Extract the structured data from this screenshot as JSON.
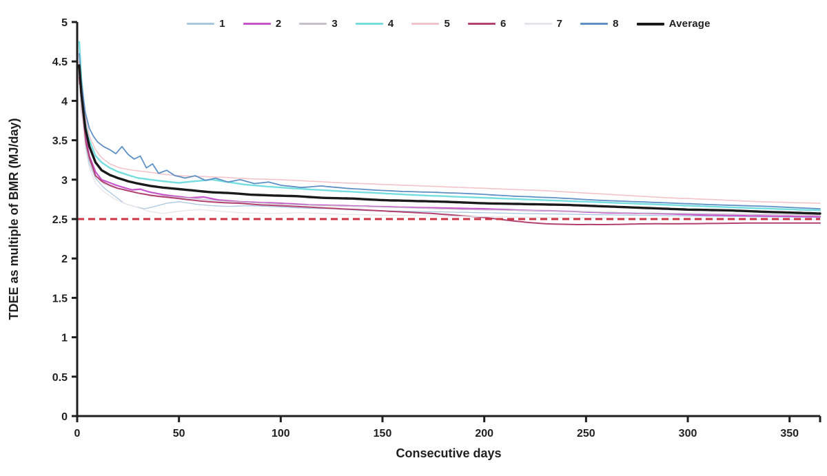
{
  "chart_data": {
    "type": "line",
    "title": "",
    "xlabel": "Consecutive days",
    "ylabel": "TDEE as multiple of BMR (MJ/day)",
    "xlim": [
      0,
      365
    ],
    "ylim": [
      0,
      5
    ],
    "x_ticks": [
      0,
      50,
      100,
      150,
      200,
      250,
      300,
      350
    ],
    "x_tick_labels": [
      "0",
      "50",
      "100",
      "150",
      "200",
      "250",
      "300",
      "350"
    ],
    "y_ticks": [
      0,
      0.5,
      1,
      1.5,
      2,
      2.5,
      3,
      3.5,
      4,
      4.5,
      5
    ],
    "y_tick_labels": [
      "0",
      "0.5",
      "1",
      "1.5",
      "2",
      "2.5",
      "3",
      "3.5",
      "4",
      "4.5",
      "5"
    ],
    "grid": false,
    "legend_position": "top",
    "axis_color": "#1f1f1f",
    "reference_line": {
      "y": 2.5,
      "color": "#cc3344",
      "style": "dashed"
    },
    "series": [
      {
        "name": "1",
        "color": "#a9c7e0",
        "width": 1.3,
        "wiggle": 0.013,
        "points": [
          [
            1,
            4.4
          ],
          [
            2,
            4.0
          ],
          [
            4,
            3.45
          ],
          [
            6,
            3.2
          ],
          [
            9,
            3.02
          ],
          [
            13,
            2.9
          ],
          [
            18,
            2.8
          ],
          [
            23,
            2.7
          ],
          [
            28,
            2.66
          ],
          [
            33,
            2.63
          ],
          [
            38,
            2.66
          ],
          [
            44,
            2.7
          ],
          [
            50,
            2.72
          ],
          [
            58,
            2.69
          ],
          [
            66,
            2.67
          ],
          [
            75,
            2.66
          ],
          [
            85,
            2.67
          ],
          [
            95,
            2.66
          ],
          [
            110,
            2.64
          ],
          [
            125,
            2.63
          ],
          [
            140,
            2.61
          ],
          [
            160,
            2.6
          ],
          [
            180,
            2.59
          ],
          [
            200,
            2.58
          ],
          [
            220,
            2.57
          ],
          [
            245,
            2.56
          ],
          [
            270,
            2.55
          ],
          [
            300,
            2.54
          ],
          [
            330,
            2.53
          ],
          [
            365,
            2.52
          ]
        ]
      },
      {
        "name": "2",
        "color": "#c653cb",
        "width": 2.2,
        "wiggle": 0.014,
        "points": [
          [
            1,
            4.35
          ],
          [
            2,
            4.05
          ],
          [
            4,
            3.55
          ],
          [
            6,
            3.3
          ],
          [
            9,
            3.1
          ],
          [
            12,
            3.0
          ],
          [
            15,
            2.97
          ],
          [
            19,
            2.93
          ],
          [
            23,
            2.9
          ],
          [
            27,
            2.87
          ],
          [
            31,
            2.88
          ],
          [
            36,
            2.84
          ],
          [
            42,
            2.81
          ],
          [
            48,
            2.79
          ],
          [
            55,
            2.77
          ],
          [
            62,
            2.78
          ],
          [
            70,
            2.74
          ],
          [
            80,
            2.72
          ],
          [
            90,
            2.71
          ],
          [
            100,
            2.7
          ],
          [
            115,
            2.68
          ],
          [
            130,
            2.67
          ],
          [
            145,
            2.66
          ],
          [
            160,
            2.65
          ],
          [
            180,
            2.64
          ],
          [
            200,
            2.63
          ],
          [
            220,
            2.61
          ],
          [
            240,
            2.6
          ],
          [
            260,
            2.58
          ],
          [
            285,
            2.57
          ],
          [
            310,
            2.55
          ],
          [
            335,
            2.54
          ],
          [
            365,
            2.53
          ]
        ]
      },
      {
        "name": "3",
        "color": "#c7c0cb",
        "width": 1.3,
        "wiggle": 0.012,
        "points": [
          [
            1,
            4.3
          ],
          [
            2,
            3.95
          ],
          [
            4,
            3.5
          ],
          [
            6,
            3.25
          ],
          [
            9,
            3.05
          ],
          [
            13,
            2.95
          ],
          [
            18,
            2.9
          ],
          [
            24,
            2.86
          ],
          [
            30,
            2.83
          ],
          [
            38,
            2.8
          ],
          [
            48,
            2.78
          ],
          [
            58,
            2.76
          ],
          [
            70,
            2.73
          ],
          [
            85,
            2.71
          ],
          [
            100,
            2.69
          ],
          [
            120,
            2.67
          ],
          [
            140,
            2.66
          ],
          [
            165,
            2.64
          ],
          [
            190,
            2.62
          ],
          [
            215,
            2.61
          ],
          [
            240,
            2.6
          ],
          [
            270,
            2.58
          ],
          [
            300,
            2.57
          ],
          [
            330,
            2.56
          ],
          [
            365,
            2.55
          ]
        ]
      },
      {
        "name": "4",
        "color": "#74dedf",
        "width": 2.4,
        "wiggle": 0.015,
        "points": [
          [
            1,
            4.75
          ],
          [
            2,
            4.3
          ],
          [
            4,
            3.75
          ],
          [
            6,
            3.5
          ],
          [
            9,
            3.3
          ],
          [
            12,
            3.22
          ],
          [
            16,
            3.15
          ],
          [
            20,
            3.1
          ],
          [
            25,
            3.06
          ],
          [
            30,
            3.02
          ],
          [
            36,
            3.0
          ],
          [
            42,
            2.98
          ],
          [
            50,
            2.96
          ],
          [
            58,
            2.98
          ],
          [
            66,
            3.0
          ],
          [
            74,
            2.97
          ],
          [
            82,
            2.94
          ],
          [
            90,
            2.92
          ],
          [
            100,
            2.9
          ],
          [
            112,
            2.88
          ],
          [
            125,
            2.86
          ],
          [
            140,
            2.84
          ],
          [
            155,
            2.82
          ],
          [
            170,
            2.8
          ],
          [
            190,
            2.78
          ],
          [
            210,
            2.76
          ],
          [
            230,
            2.74
          ],
          [
            250,
            2.72
          ],
          [
            270,
            2.7
          ],
          [
            290,
            2.68
          ],
          [
            310,
            2.66
          ],
          [
            330,
            2.64
          ],
          [
            365,
            2.61
          ]
        ]
      },
      {
        "name": "5",
        "color": "#f2c4ca",
        "width": 1.6,
        "wiggle": 0.01,
        "points": [
          [
            1,
            4.5
          ],
          [
            2,
            4.2
          ],
          [
            4,
            3.8
          ],
          [
            6,
            3.55
          ],
          [
            9,
            3.38
          ],
          [
            12,
            3.28
          ],
          [
            16,
            3.2
          ],
          [
            21,
            3.15
          ],
          [
            27,
            3.12
          ],
          [
            34,
            3.1
          ],
          [
            42,
            3.07
          ],
          [
            50,
            3.05
          ],
          [
            60,
            3.04
          ],
          [
            72,
            3.03
          ],
          [
            85,
            3.01
          ],
          [
            100,
            3.0
          ],
          [
            115,
            2.98
          ],
          [
            130,
            2.96
          ],
          [
            150,
            2.94
          ],
          [
            170,
            2.92
          ],
          [
            190,
            2.9
          ],
          [
            210,
            2.88
          ],
          [
            230,
            2.86
          ],
          [
            250,
            2.83
          ],
          [
            270,
            2.8
          ],
          [
            290,
            2.77
          ],
          [
            310,
            2.75
          ],
          [
            335,
            2.72
          ],
          [
            365,
            2.7
          ]
        ]
      },
      {
        "name": "6",
        "color": "#b2416f",
        "width": 2.0,
        "wiggle": 0.012,
        "points": [
          [
            1,
            4.3
          ],
          [
            2,
            3.9
          ],
          [
            4,
            3.5
          ],
          [
            6,
            3.28
          ],
          [
            9,
            3.05
          ],
          [
            12,
            2.98
          ],
          [
            16,
            2.93
          ],
          [
            20,
            2.89
          ],
          [
            25,
            2.86
          ],
          [
            30,
            2.83
          ],
          [
            36,
            2.8
          ],
          [
            43,
            2.78
          ],
          [
            50,
            2.76
          ],
          [
            60,
            2.73
          ],
          [
            70,
            2.71
          ],
          [
            80,
            2.7
          ],
          [
            90,
            2.68
          ],
          [
            100,
            2.67
          ],
          [
            115,
            2.65
          ],
          [
            130,
            2.63
          ],
          [
            145,
            2.61
          ],
          [
            160,
            2.59
          ],
          [
            175,
            2.57
          ],
          [
            190,
            2.54
          ],
          [
            200,
            2.52
          ],
          [
            210,
            2.49
          ],
          [
            220,
            2.46
          ],
          [
            230,
            2.44
          ],
          [
            245,
            2.43
          ],
          [
            260,
            2.43
          ],
          [
            280,
            2.44
          ],
          [
            300,
            2.44
          ],
          [
            330,
            2.45
          ],
          [
            365,
            2.45
          ]
        ]
      },
      {
        "name": "7",
        "color": "#e6e4ea",
        "width": 1.3,
        "wiggle": 0.012,
        "points": [
          [
            1,
            4.2
          ],
          [
            2,
            3.9
          ],
          [
            4,
            3.4
          ],
          [
            6,
            3.15
          ],
          [
            9,
            2.95
          ],
          [
            13,
            2.85
          ],
          [
            18,
            2.76
          ],
          [
            23,
            2.7
          ],
          [
            28,
            2.66
          ],
          [
            35,
            2.6
          ],
          [
            42,
            2.57
          ],
          [
            50,
            2.6
          ],
          [
            60,
            2.62
          ],
          [
            70,
            2.6
          ],
          [
            80,
            2.58
          ],
          [
            95,
            2.57
          ],
          [
            110,
            2.58
          ],
          [
            130,
            2.56
          ],
          [
            150,
            2.55
          ],
          [
            175,
            2.54
          ],
          [
            200,
            2.53
          ],
          [
            230,
            2.52
          ],
          [
            260,
            2.51
          ],
          [
            290,
            2.5
          ],
          [
            320,
            2.5
          ],
          [
            365,
            2.49
          ]
        ]
      },
      {
        "name": "8",
        "color": "#5e90c6",
        "width": 1.8,
        "wiggle": 0.012,
        "points": [
          [
            1,
            4.6
          ],
          [
            2,
            4.25
          ],
          [
            4,
            3.85
          ],
          [
            6,
            3.65
          ],
          [
            8,
            3.55
          ],
          [
            10,
            3.48
          ],
          [
            13,
            3.42
          ],
          [
            16,
            3.38
          ],
          [
            19,
            3.33
          ],
          [
            22,
            3.42
          ],
          [
            25,
            3.32
          ],
          [
            28,
            3.26
          ],
          [
            31,
            3.3
          ],
          [
            34,
            3.15
          ],
          [
            37,
            3.2
          ],
          [
            40,
            3.08
          ],
          [
            44,
            3.12
          ],
          [
            48,
            3.05
          ],
          [
            53,
            3.02
          ],
          [
            58,
            3.05
          ],
          [
            63,
            2.99
          ],
          [
            68,
            3.02
          ],
          [
            74,
            2.97
          ],
          [
            80,
            3.0
          ],
          [
            87,
            2.95
          ],
          [
            94,
            2.97
          ],
          [
            100,
            2.93
          ],
          [
            110,
            2.9
          ],
          [
            120,
            2.92
          ],
          [
            132,
            2.89
          ],
          [
            145,
            2.87
          ],
          [
            160,
            2.85
          ],
          [
            175,
            2.84
          ],
          [
            195,
            2.82
          ],
          [
            215,
            2.79
          ],
          [
            235,
            2.77
          ],
          [
            255,
            2.74
          ],
          [
            275,
            2.72
          ],
          [
            295,
            2.7
          ],
          [
            315,
            2.68
          ],
          [
            340,
            2.66
          ],
          [
            365,
            2.63
          ]
        ]
      },
      {
        "name": "Average",
        "color": "#1a1a1a",
        "width": 3.4,
        "wiggle": 0.004,
        "points": [
          [
            1,
            4.45
          ],
          [
            2,
            4.1
          ],
          [
            4,
            3.65
          ],
          [
            6,
            3.42
          ],
          [
            9,
            3.22
          ],
          [
            12,
            3.12
          ],
          [
            16,
            3.06
          ],
          [
            20,
            3.02
          ],
          [
            25,
            2.98
          ],
          [
            30,
            2.95
          ],
          [
            36,
            2.92
          ],
          [
            42,
            2.9
          ],
          [
            50,
            2.88
          ],
          [
            58,
            2.86
          ],
          [
            66,
            2.84
          ],
          [
            75,
            2.83
          ],
          [
            85,
            2.81
          ],
          [
            95,
            2.8
          ],
          [
            108,
            2.79
          ],
          [
            120,
            2.77
          ],
          [
            135,
            2.76
          ],
          [
            150,
            2.74
          ],
          [
            165,
            2.73
          ],
          [
            180,
            2.72
          ],
          [
            200,
            2.7
          ],
          [
            220,
            2.69
          ],
          [
            240,
            2.68
          ],
          [
            260,
            2.66
          ],
          [
            280,
            2.64
          ],
          [
            300,
            2.62
          ],
          [
            320,
            2.61
          ],
          [
            340,
            2.59
          ],
          [
            365,
            2.57
          ]
        ]
      }
    ]
  }
}
